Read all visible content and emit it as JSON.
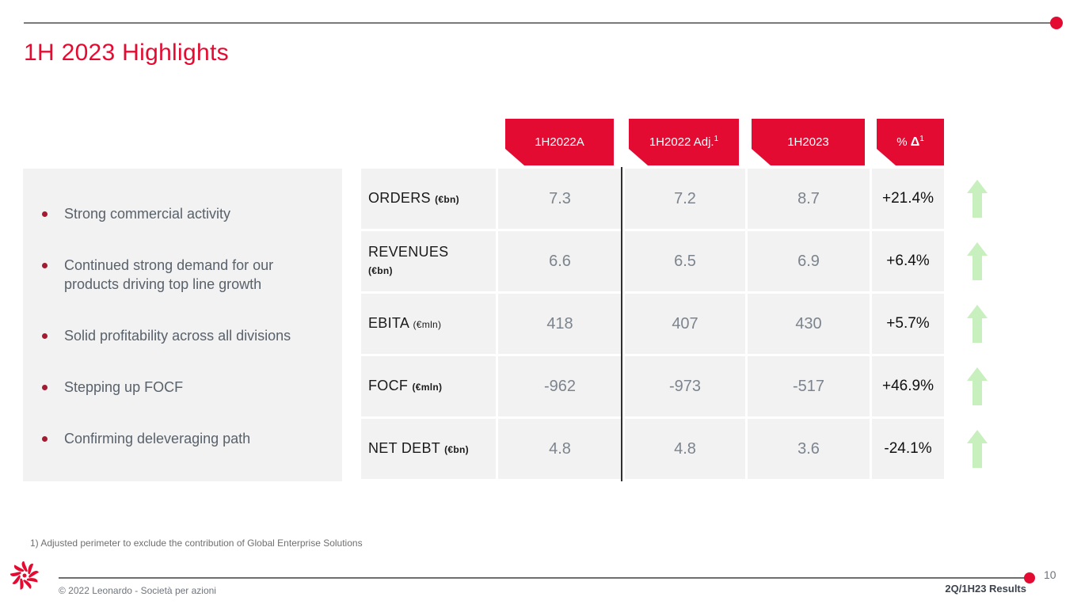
{
  "title": "1H 2023 Highlights",
  "colors": {
    "brand_red": "#E40B32",
    "bullet_red": "#A21B31",
    "cell_bg": "#F2F2F2",
    "value_gray": "#7C848D",
    "panel_text": "#59616A",
    "arrow_green": "#C7F0BE"
  },
  "bullets": {
    "items": [
      [
        "Strong commercial activity"
      ],
      [
        "Continued strong demand for our",
        "products driving top line growth"
      ],
      [
        "Solid profitability across all divisions"
      ],
      [
        "Stepping up FOCF"
      ],
      [
        "Confirming deleveraging path"
      ]
    ]
  },
  "table": {
    "header_flags": [
      {
        "text": "1H2022A",
        "bold": "",
        "sup": ""
      },
      {
        "text": "1H2022 Adj.",
        "bold": "",
        "sup": "1"
      },
      {
        "text": "1H2023",
        "bold": "",
        "sup": ""
      },
      {
        "text": "% ",
        "bold": "Δ",
        "sup": "1"
      }
    ],
    "rows": [
      {
        "metric": "ORDERS",
        "unit": "(€bn)",
        "unit_bold": true,
        "two_line": false,
        "values": [
          "7.3",
          "7.2",
          "8.7"
        ],
        "delta": "+21.4%",
        "trend": "up"
      },
      {
        "metric": "REVENUES",
        "unit": "(€bn)",
        "unit_bold": true,
        "two_line": true,
        "values": [
          "6.6",
          "6.5",
          "6.9"
        ],
        "delta": "+6.4%",
        "trend": "up"
      },
      {
        "metric": "EBITA",
        "unit": "(€mln)",
        "unit_bold": false,
        "two_line": false,
        "values": [
          "418",
          "407",
          "430"
        ],
        "delta": "+5.7%",
        "trend": "up"
      },
      {
        "metric": "FOCF",
        "unit": "(€mln)",
        "unit_bold": true,
        "two_line": false,
        "values": [
          "-962",
          "-973",
          "-517"
        ],
        "delta": "+46.9%",
        "trend": "up"
      },
      {
        "metric": "NET DEBT",
        "unit": "(€bn)",
        "unit_bold": true,
        "two_line": false,
        "values": [
          "4.8",
          "4.8",
          "3.6"
        ],
        "delta": "-24.1%",
        "trend": "up"
      }
    ]
  },
  "footnote": "1) Adjusted perimeter to exclude the contribution of Global Enterprise Solutions",
  "footer": {
    "copyright": "© 2022 Leonardo - Società per azioni",
    "report_label": "2Q/1H23 Results",
    "page_number": "10"
  }
}
